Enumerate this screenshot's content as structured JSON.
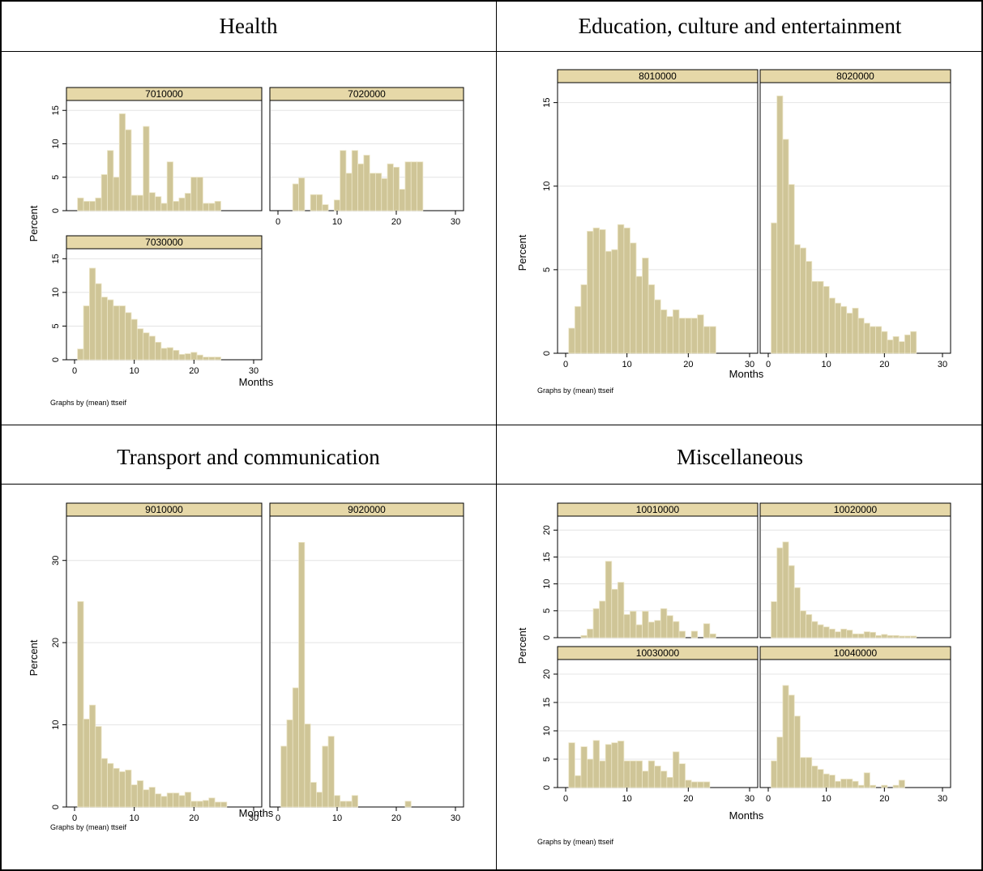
{
  "panels": [
    {
      "title": "Health"
    },
    {
      "title": "Education, culture and entertainment"
    },
    {
      "title": "Transport and communication"
    },
    {
      "title": "Miscellaneous"
    }
  ],
  "colors": {
    "bar_fill": "#cfc597",
    "bar_stroke": "#ece5c6",
    "strip_fill": "#e6d8a8",
    "grid": "#e4e4e4"
  },
  "chart_data": [
    {
      "type": "bar",
      "title": "Health",
      "xlabel": "Months",
      "ylabel": "Percent",
      "note": "Graphs by (mean) ttseif",
      "xlim": [
        0,
        30
      ],
      "ylim": [
        0,
        16
      ],
      "xticks": [
        0,
        10,
        20,
        30
      ],
      "yticks": [
        0,
        5,
        10,
        15
      ],
      "bin_width": 1,
      "series": [
        {
          "name": "7010000",
          "x": [
            1,
            2,
            3,
            4,
            5,
            6,
            7,
            8,
            9,
            10,
            11,
            12,
            13,
            14,
            15,
            16,
            17,
            18,
            19,
            20,
            21,
            22,
            23,
            24,
            25
          ],
          "values": [
            1.9,
            1.4,
            1.4,
            1.9,
            5.4,
            9.0,
            5.0,
            14.5,
            12.1,
            2.3,
            2.3,
            12.6,
            2.7,
            2.1,
            1.1,
            7.3,
            1.4,
            1.9,
            2.6,
            5.0,
            5.0,
            1.1,
            1.1,
            1.4,
            0
          ]
        },
        {
          "name": "7020000",
          "x": [
            1,
            2,
            3,
            4,
            5,
            6,
            7,
            8,
            9,
            10,
            11,
            12,
            13,
            14,
            15,
            16,
            17,
            18,
            19,
            20,
            21,
            22,
            23,
            24,
            25
          ],
          "values": [
            0,
            0,
            4.0,
            4.9,
            0,
            2.4,
            2.4,
            0.9,
            0,
            1.6,
            9.0,
            5.6,
            9.0,
            7.0,
            8.3,
            5.6,
            5.6,
            4.8,
            7.0,
            6.5,
            3.2,
            7.3,
            7.3,
            7.3,
            0
          ]
        },
        {
          "name": "7030000",
          "x": [
            1,
            2,
            3,
            4,
            5,
            6,
            7,
            8,
            9,
            10,
            11,
            12,
            13,
            14,
            15,
            16,
            17,
            18,
            19,
            20,
            21,
            22,
            23,
            24,
            25
          ],
          "values": [
            1.6,
            8.0,
            13.6,
            11.3,
            9.3,
            8.9,
            8.0,
            8.0,
            7.0,
            6.0,
            4.6,
            4.0,
            3.5,
            2.6,
            1.7,
            1.8,
            1.4,
            0.8,
            0.9,
            1.1,
            0.7,
            0.4,
            0.4,
            0.4,
            0
          ]
        }
      ]
    },
    {
      "type": "bar",
      "title": "Education, culture and entertainment",
      "xlabel": "Months",
      "ylabel": "Percent",
      "note": "Graphs by (mean) ttseif",
      "xlim": [
        0,
        30
      ],
      "ylim": [
        0,
        16
      ],
      "xticks": [
        0,
        10,
        20,
        30
      ],
      "yticks": [
        0,
        5,
        10,
        15
      ],
      "bin_width": 1,
      "series": [
        {
          "name": "8010000",
          "x": [
            1,
            2,
            3,
            4,
            5,
            6,
            7,
            8,
            9,
            10,
            11,
            12,
            13,
            14,
            15,
            16,
            17,
            18,
            19,
            20,
            21,
            22,
            23,
            24
          ],
          "values": [
            1.5,
            2.8,
            4.1,
            7.3,
            7.5,
            7.4,
            6.1,
            6.2,
            7.7,
            7.5,
            6.6,
            4.6,
            5.7,
            4.1,
            3.2,
            2.6,
            2.2,
            2.6,
            2.1,
            2.1,
            2.1,
            2.3,
            1.6,
            1.6
          ]
        },
        {
          "name": "8020000",
          "x": [
            1,
            2,
            3,
            4,
            5,
            6,
            7,
            8,
            9,
            10,
            11,
            12,
            13,
            14,
            15,
            16,
            17,
            18,
            19,
            20,
            21,
            22,
            23,
            24,
            25
          ],
          "values": [
            7.8,
            15.4,
            12.8,
            10.1,
            6.5,
            6.3,
            5.5,
            4.3,
            4.3,
            4.0,
            3.3,
            3.0,
            2.8,
            2.4,
            2.7,
            2.1,
            1.8,
            1.6,
            1.6,
            1.3,
            0.8,
            1.0,
            0.7,
            1.1,
            1.3
          ]
        }
      ]
    },
    {
      "type": "bar",
      "title": "Transport and communication",
      "xlabel": "Months",
      "ylabel": "Percent",
      "note": "Graphs by (mean) ttseif",
      "xlim": [
        0,
        30
      ],
      "ylim": [
        0,
        35
      ],
      "xticks": [
        0,
        10,
        20,
        30
      ],
      "yticks": [
        0,
        10,
        20,
        30
      ],
      "bin_width": 1,
      "series": [
        {
          "name": "9010000",
          "x": [
            1,
            2,
            3,
            4,
            5,
            6,
            7,
            8,
            9,
            10,
            11,
            12,
            13,
            14,
            15,
            16,
            17,
            18,
            19,
            20,
            21,
            22,
            23,
            24,
            25
          ],
          "values": [
            25.0,
            10.7,
            12.4,
            9.8,
            5.9,
            5.3,
            4.7,
            4.3,
            4.5,
            2.7,
            3.2,
            2.1,
            2.4,
            1.6,
            1.3,
            1.7,
            1.7,
            1.4,
            1.8,
            0.7,
            0.7,
            0.8,
            1.1,
            0.6,
            0.6
          ]
        },
        {
          "name": "9020000",
          "x": [
            1,
            2,
            3,
            4,
            5,
            6,
            7,
            8,
            9,
            10,
            11,
            12,
            13,
            22
          ],
          "values": [
            7.4,
            10.6,
            14.5,
            32.2,
            10.1,
            3.0,
            1.8,
            7.4,
            8.6,
            1.4,
            0.7,
            0.7,
            1.4,
            0.7
          ]
        }
      ]
    },
    {
      "type": "bar",
      "title": "Miscellaneous",
      "xlabel": "Months",
      "ylabel": "Percent",
      "note": "Graphs by (mean) ttseif",
      "xlim": [
        0,
        30
      ],
      "ylim": [
        0,
        22
      ],
      "xticks": [
        0,
        10,
        20,
        30
      ],
      "yticks": [
        0,
        5,
        10,
        15,
        20
      ],
      "bin_width": 1,
      "series": [
        {
          "name": "10010000",
          "x": [
            1,
            2,
            3,
            4,
            5,
            6,
            7,
            8,
            9,
            10,
            11,
            12,
            13,
            14,
            15,
            16,
            17,
            18,
            19,
            20,
            21,
            22,
            23,
            24
          ],
          "values": [
            0,
            0,
            0.4,
            1.6,
            5.4,
            6.8,
            14.2,
            9.0,
            10.3,
            4.3,
            4.9,
            2.4,
            4.9,
            2.9,
            3.2,
            5.4,
            4.1,
            3.0,
            1.2,
            0,
            1.2,
            0,
            2.6,
            0.7
          ]
        },
        {
          "name": "10020000",
          "x": [
            1,
            2,
            3,
            4,
            5,
            6,
            7,
            8,
            9,
            10,
            11,
            12,
            13,
            14,
            15,
            16,
            17,
            18,
            19,
            20,
            21,
            22,
            23,
            24,
            25
          ],
          "values": [
            6.7,
            16.7,
            17.8,
            13.4,
            9.3,
            5.0,
            4.3,
            3.0,
            2.4,
            2.0,
            1.6,
            1.1,
            1.6,
            1.4,
            0.7,
            0.7,
            1.1,
            1.0,
            0.4,
            0.6,
            0.4,
            0.4,
            0.3,
            0.3,
            0.3
          ]
        },
        {
          "name": "10030000",
          "x": [
            1,
            2,
            3,
            4,
            5,
            6,
            7,
            8,
            9,
            10,
            11,
            12,
            13,
            14,
            15,
            16,
            17,
            18,
            19,
            20,
            21,
            22,
            23,
            24
          ],
          "values": [
            7.9,
            2.1,
            7.2,
            5.0,
            8.3,
            4.7,
            7.6,
            7.9,
            8.2,
            4.7,
            4.7,
            4.7,
            2.9,
            4.7,
            3.8,
            2.9,
            1.8,
            6.3,
            4.2,
            1.3,
            1.0,
            1.0,
            1.0,
            0
          ]
        },
        {
          "name": "10040000",
          "x": [
            1,
            2,
            3,
            4,
            5,
            6,
            7,
            8,
            9,
            10,
            11,
            12,
            13,
            14,
            15,
            16,
            17,
            18,
            19,
            20,
            21,
            22,
            23,
            24
          ],
          "values": [
            4.7,
            8.9,
            18.0,
            16.3,
            12.6,
            5.3,
            5.3,
            3.8,
            3.2,
            2.4,
            2.2,
            1.1,
            1.5,
            1.5,
            1.1,
            0.4,
            2.6,
            0.4,
            0,
            0.4,
            0,
            0.4,
            1.3,
            0
          ]
        }
      ]
    }
  ]
}
